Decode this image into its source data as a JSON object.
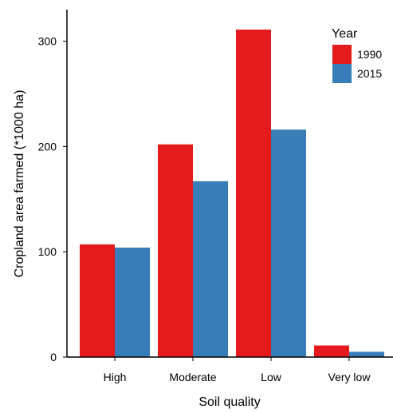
{
  "chart_data": {
    "type": "bar",
    "categories": [
      "High",
      "Moderate",
      "Low",
      "Very low"
    ],
    "series": [
      {
        "name": "1990",
        "values": [
          107,
          202,
          311,
          11
        ],
        "color": "#e41a1c"
      },
      {
        "name": "2015",
        "values": [
          104,
          167,
          216,
          5
        ],
        "color": "#377eb8"
      }
    ],
    "xlabel": "Soil quality",
    "ylabel": "Cropland area farmed (*1000 ha)",
    "ylim": [
      0,
      330
    ],
    "yticks": [
      0,
      100,
      200,
      300
    ],
    "legend": {
      "title": "Year",
      "placement": "top-right"
    },
    "grid": false
  }
}
